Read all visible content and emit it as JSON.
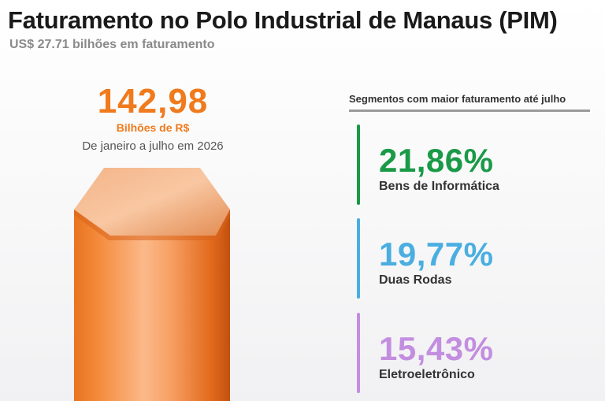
{
  "header": {
    "title": "Faturamento no Polo Industrial de Manaus (PIM)",
    "subtitle": "US$ 27.71 bilhões em faturamento"
  },
  "highlight": {
    "value": "142,98",
    "unit": "Bilhões de R$",
    "period": "De janeiro a julho em 2026",
    "color": "#f07a1c"
  },
  "segments": {
    "header": "Segmentos com maior faturamento até julho",
    "items": [
      {
        "percent": "21,86%",
        "label": "Bens de Informática",
        "color": "#1a9a47"
      },
      {
        "percent": "19,77%",
        "label": "Duas Rodas",
        "color": "#4aaee0"
      },
      {
        "percent": "15,43%",
        "label": "Eletroeletrônico",
        "color": "#c38ee0"
      }
    ]
  }
}
